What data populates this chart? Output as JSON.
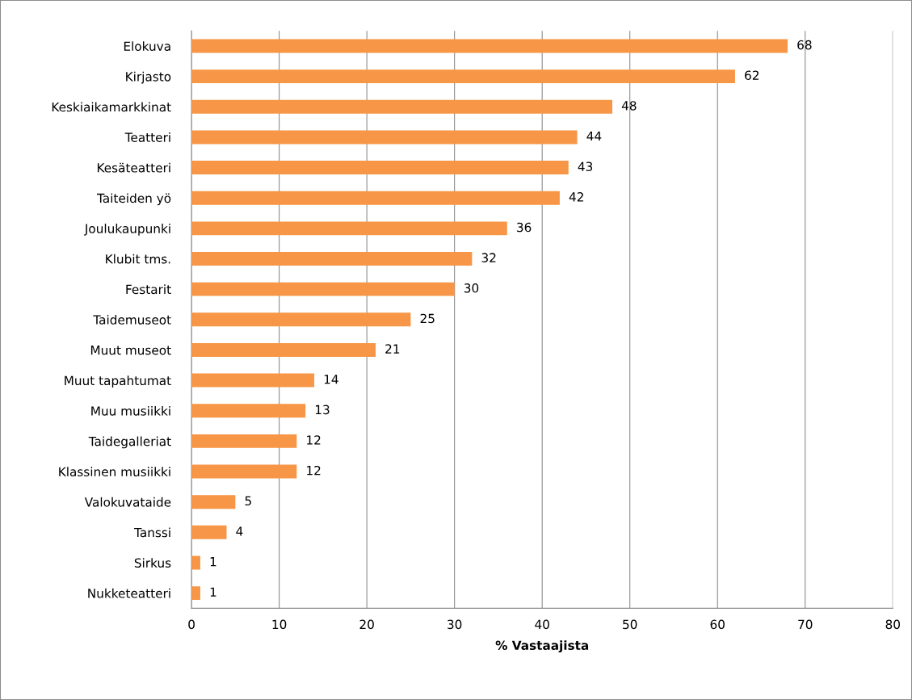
{
  "chart_data": {
    "type": "bar",
    "orientation": "horizontal",
    "xlabel": "% Vastaajista",
    "categories": [
      "Elokuva",
      "Kirjasto",
      "Keskiaikamarkkinat",
      "Teatteri",
      "Kesäteatteri",
      "Taiteiden yö",
      "Joulukaupunki",
      "Klubit tms.",
      "Festarit",
      "Taidemuseot",
      "Muut museot",
      "Muut tapahtumat",
      "Muu musiikki",
      "Taidegalleriat",
      "Klassinen musiikki",
      "Valokuvataide",
      "Tanssi",
      "Sirkus",
      "Nukketeatteri"
    ],
    "values": [
      68,
      62,
      48,
      44,
      43,
      42,
      36,
      32,
      30,
      25,
      21,
      14,
      13,
      12,
      12,
      5,
      4,
      1,
      1
    ],
    "color": "#f79646",
    "xlim": [
      0,
      80
    ],
    "xticks": [
      0,
      10,
      20,
      30,
      40,
      50,
      60,
      70,
      80
    ],
    "grid": "x",
    "data_labels": true
  }
}
